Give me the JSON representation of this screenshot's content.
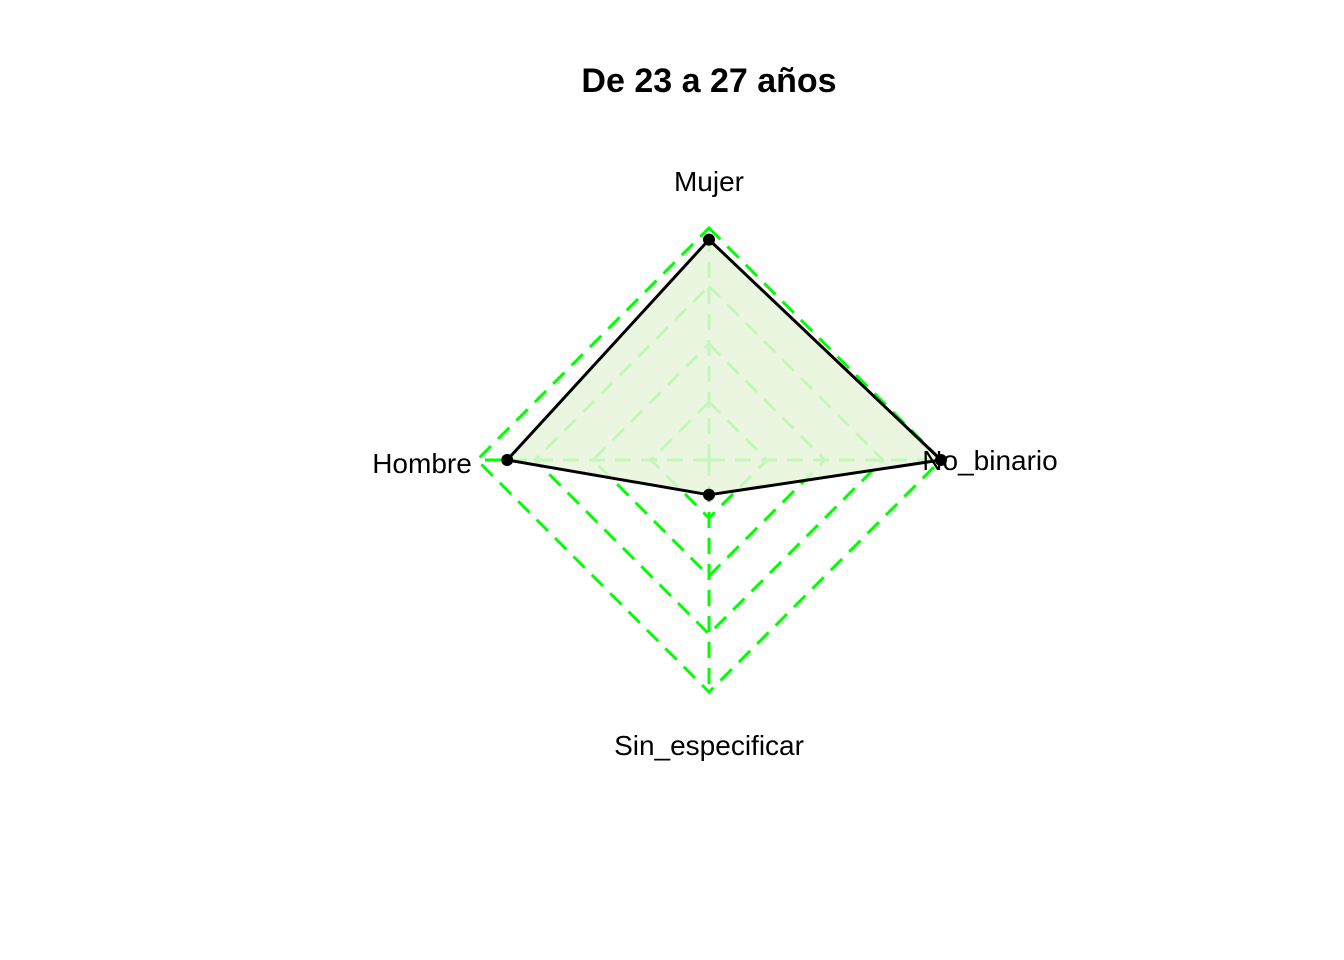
{
  "chart_data": {
    "type": "radar",
    "title": "De 23 a 27 años",
    "categories": [
      "Mujer",
      "No_binario",
      "Sin_especificar",
      "Hombre"
    ],
    "series": [
      {
        "values": [
          0.95,
          1.0,
          0.15,
          0.87
        ]
      }
    ],
    "range": [
      0,
      1
    ],
    "grid_levels": 4,
    "grid_style": "dashed",
    "colors": {
      "grid": "#00ff00",
      "series_line": "#000000",
      "series_fill": "#e8f5dc",
      "point": "#000000",
      "text": "#000000"
    }
  }
}
